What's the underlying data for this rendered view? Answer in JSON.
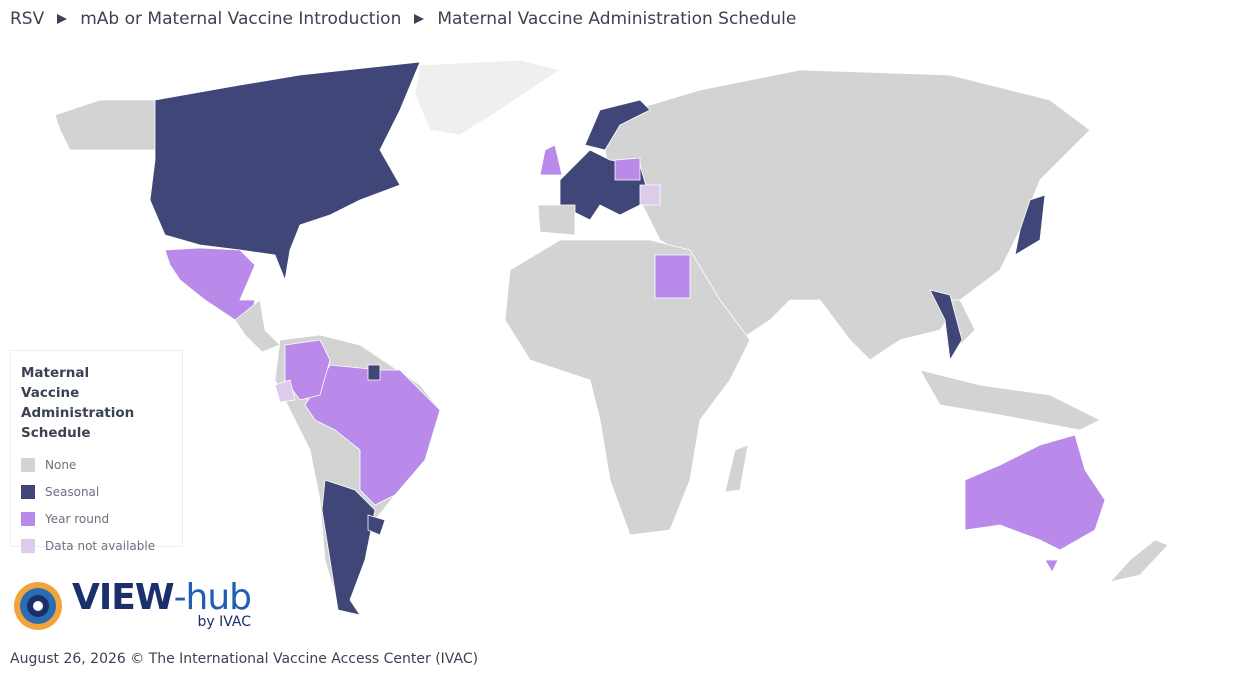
{
  "breadcrumb": [
    "RSV",
    "mAb or Maternal Vaccine Introduction",
    "Maternal Vaccine Administration Schedule"
  ],
  "legend": {
    "title": "Maternal Vaccine Administration Schedule",
    "items": [
      {
        "label": "None",
        "color": "#d3d3d3"
      },
      {
        "label": "Seasonal",
        "color": "#404677"
      },
      {
        "label": "Year round",
        "color": "#b98ae9"
      },
      {
        "label": "Data not available",
        "color": "#dccbea"
      }
    ]
  },
  "logo": {
    "parts": [
      "VIEW",
      "-hub"
    ],
    "byline": "by IVAC"
  },
  "footer": "August 26, 2026 © The International Vaccine Access Center (IVAC)"
}
